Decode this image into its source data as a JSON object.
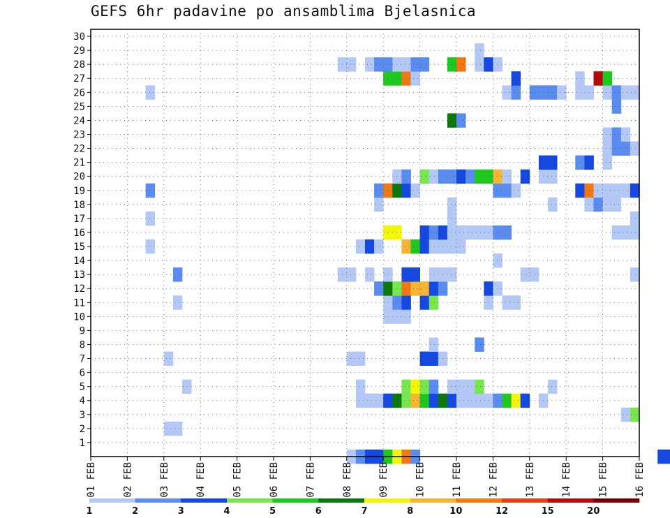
{
  "chart_data": {
    "type": "heatmap",
    "title": "GEFS 6hr padavine po ansamblima Bjelasnica",
    "x_ticks": [
      "01 FEB",
      "02 FEB",
      "03 FEB",
      "04 FEB",
      "05 FEB",
      "06 FEB",
      "07 FEB",
      "08 FEB",
      "09 FEB",
      "10 FEB",
      "11 FEB",
      "12 FEB",
      "13 FEB",
      "14 FEB",
      "15 FEB",
      "16 FEB"
    ],
    "y_ticks": [
      "1",
      "2",
      "3",
      "4",
      "5",
      "6",
      "7",
      "8",
      "9",
      "10",
      "11",
      "12",
      "13",
      "14",
      "15",
      "16",
      "17",
      "18",
      "19",
      "20",
      "21",
      "22",
      "23",
      "24",
      "25",
      "26",
      "27",
      "28",
      "29",
      "30"
    ],
    "y_range": [
      0,
      30
    ],
    "x_step_hours": 6,
    "grid": true,
    "legend": {
      "placement": "bottom",
      "labels": [
        "1",
        "2",
        "3",
        "4",
        "5",
        "6",
        "7",
        "8",
        "10",
        "12",
        "15",
        "20"
      ],
      "colors": [
        "#b4c8f5",
        "#5a8cf0",
        "#1448e0",
        "#78e650",
        "#1ec81e",
        "#0a780a",
        "#f5f50a",
        "#f5b432",
        "#f07814",
        "#e63c14",
        "#b40a0a",
        "#780000"
      ]
    },
    "cells_note": "member, 6h step (0 = 01 FEB 00Z), category (1..12 = legend bin)",
    "cells": [
      [
        0,
        28,
        1
      ],
      [
        0,
        29,
        2
      ],
      [
        0,
        30,
        3
      ],
      [
        0,
        31,
        3
      ],
      [
        0,
        32,
        5
      ],
      [
        0,
        33,
        7
      ],
      [
        0,
        34,
        9
      ],
      [
        0,
        35,
        2
      ],
      [
        0,
        62,
        3
      ],
      [
        0,
        63,
        3
      ],
      [
        2,
        8,
        1
      ],
      [
        2,
        9,
        1
      ],
      [
        3,
        58,
        1
      ],
      [
        3,
        59,
        4
      ],
      [
        4,
        29,
        1
      ],
      [
        4,
        30,
        1
      ],
      [
        4,
        31,
        1
      ],
      [
        4,
        32,
        3
      ],
      [
        4,
        33,
        6
      ],
      [
        4,
        34,
        4
      ],
      [
        4,
        35,
        8
      ],
      [
        4,
        36,
        5
      ],
      [
        4,
        37,
        3
      ],
      [
        4,
        38,
        6
      ],
      [
        4,
        39,
        3
      ],
      [
        4,
        40,
        1
      ],
      [
        4,
        41,
        1
      ],
      [
        4,
        42,
        1
      ],
      [
        4,
        43,
        1
      ],
      [
        4,
        44,
        2
      ],
      [
        4,
        45,
        5
      ],
      [
        4,
        46,
        7
      ],
      [
        4,
        47,
        3
      ],
      [
        4,
        49,
        1
      ],
      [
        5,
        10,
        1
      ],
      [
        5,
        29,
        1
      ],
      [
        5,
        34,
        4
      ],
      [
        5,
        35,
        7
      ],
      [
        5,
        36,
        4
      ],
      [
        5,
        37,
        2
      ],
      [
        5,
        39,
        1
      ],
      [
        5,
        40,
        1
      ],
      [
        5,
        41,
        1
      ],
      [
        5,
        42,
        4
      ],
      [
        5,
        50,
        1
      ],
      [
        7,
        8,
        1
      ],
      [
        7,
        28,
        1
      ],
      [
        7,
        29,
        1
      ],
      [
        7,
        36,
        3
      ],
      [
        7,
        37,
        3
      ],
      [
        7,
        38,
        1
      ],
      [
        8,
        37,
        1
      ],
      [
        8,
        42,
        2
      ],
      [
        10,
        32,
        1
      ],
      [
        10,
        33,
        1
      ],
      [
        10,
        34,
        1
      ],
      [
        11,
        9,
        1
      ],
      [
        11,
        32,
        1
      ],
      [
        11,
        33,
        2
      ],
      [
        11,
        34,
        3
      ],
      [
        11,
        36,
        3
      ],
      [
        11,
        37,
        4
      ],
      [
        11,
        43,
        1
      ],
      [
        11,
        45,
        1
      ],
      [
        11,
        46,
        1
      ],
      [
        12,
        31,
        2
      ],
      [
        12,
        32,
        6
      ],
      [
        12,
        33,
        4
      ],
      [
        12,
        34,
        9
      ],
      [
        12,
        35,
        8
      ],
      [
        12,
        36,
        8
      ],
      [
        12,
        37,
        3
      ],
      [
        12,
        38,
        2
      ],
      [
        12,
        43,
        3
      ],
      [
        12,
        44,
        1
      ],
      [
        13,
        9,
        2
      ],
      [
        13,
        27,
        1
      ],
      [
        13,
        28,
        1
      ],
      [
        13,
        30,
        1
      ],
      [
        13,
        32,
        1
      ],
      [
        13,
        34,
        3
      ],
      [
        13,
        35,
        3
      ],
      [
        13,
        37,
        1
      ],
      [
        13,
        38,
        1
      ],
      [
        13,
        39,
        1
      ],
      [
        13,
        47,
        1
      ],
      [
        13,
        48,
        1
      ],
      [
        13,
        59,
        1
      ],
      [
        14,
        44,
        1
      ],
      [
        15,
        6,
        1
      ],
      [
        15,
        29,
        1
      ],
      [
        15,
        30,
        3
      ],
      [
        15,
        31,
        1
      ],
      [
        15,
        34,
        8
      ],
      [
        15,
        35,
        5
      ],
      [
        15,
        36,
        3
      ],
      [
        15,
        37,
        1
      ],
      [
        15,
        38,
        1
      ],
      [
        15,
        39,
        1
      ],
      [
        15,
        40,
        1
      ],
      [
        16,
        32,
        7
      ],
      [
        16,
        33,
        7
      ],
      [
        16,
        36,
        3
      ],
      [
        16,
        37,
        2
      ],
      [
        16,
        38,
        3
      ],
      [
        16,
        39,
        1
      ],
      [
        16,
        40,
        1
      ],
      [
        16,
        41,
        1
      ],
      [
        16,
        42,
        1
      ],
      [
        16,
        43,
        1
      ],
      [
        16,
        44,
        2
      ],
      [
        16,
        45,
        2
      ],
      [
        16,
        57,
        1
      ],
      [
        16,
        58,
        1
      ],
      [
        16,
        59,
        1
      ],
      [
        17,
        6,
        1
      ],
      [
        17,
        39,
        1
      ],
      [
        17,
        59,
        1
      ],
      [
        18,
        31,
        1
      ],
      [
        18,
        39,
        1
      ],
      [
        18,
        50,
        1
      ],
      [
        18,
        54,
        1
      ],
      [
        18,
        55,
        2
      ],
      [
        18,
        56,
        1
      ],
      [
        18,
        57,
        1
      ],
      [
        19,
        6,
        2
      ],
      [
        19,
        31,
        2
      ],
      [
        19,
        32,
        9
      ],
      [
        19,
        33,
        6
      ],
      [
        19,
        34,
        3
      ],
      [
        19,
        35,
        1
      ],
      [
        19,
        44,
        2
      ],
      [
        19,
        45,
        2
      ],
      [
        19,
        46,
        1
      ],
      [
        19,
        53,
        3
      ],
      [
        19,
        54,
        9
      ],
      [
        19,
        55,
        1
      ],
      [
        19,
        56,
        1
      ],
      [
        19,
        57,
        1
      ],
      [
        19,
        58,
        1
      ],
      [
        19,
        59,
        3
      ],
      [
        20,
        33,
        1
      ],
      [
        20,
        34,
        2
      ],
      [
        20,
        36,
        4
      ],
      [
        20,
        37,
        1
      ],
      [
        20,
        38,
        2
      ],
      [
        20,
        39,
        2
      ],
      [
        20,
        40,
        3
      ],
      [
        20,
        41,
        2
      ],
      [
        20,
        42,
        5
      ],
      [
        20,
        43,
        5
      ],
      [
        20,
        44,
        8
      ],
      [
        20,
        45,
        1
      ],
      [
        20,
        47,
        3
      ],
      [
        20,
        49,
        1
      ],
      [
        20,
        50,
        1
      ],
      [
        21,
        49,
        3
      ],
      [
        21,
        50,
        3
      ],
      [
        21,
        53,
        2
      ],
      [
        21,
        54,
        3
      ],
      [
        21,
        56,
        1
      ],
      [
        22,
        56,
        1
      ],
      [
        22,
        57,
        2
      ],
      [
        22,
        58,
        2
      ],
      [
        22,
        59,
        1
      ],
      [
        23,
        56,
        1
      ],
      [
        23,
        57,
        2
      ],
      [
        23,
        58,
        1
      ],
      [
        24,
        39,
        6
      ],
      [
        24,
        40,
        2
      ],
      [
        25,
        57,
        2
      ],
      [
        26,
        6,
        1
      ],
      [
        26,
        45,
        1
      ],
      [
        26,
        46,
        2
      ],
      [
        26,
        48,
        2
      ],
      [
        26,
        49,
        2
      ],
      [
        26,
        50,
        2
      ],
      [
        26,
        51,
        1
      ],
      [
        26,
        53,
        1
      ],
      [
        26,
        54,
        1
      ],
      [
        26,
        56,
        1
      ],
      [
        26,
        57,
        2
      ],
      [
        26,
        58,
        1
      ],
      [
        26,
        59,
        1
      ],
      [
        27,
        32,
        5
      ],
      [
        27,
        33,
        5
      ],
      [
        27,
        34,
        9
      ],
      [
        27,
        35,
        1
      ],
      [
        27,
        46,
        3
      ],
      [
        27,
        53,
        1
      ],
      [
        27,
        55,
        11
      ],
      [
        27,
        56,
        5
      ],
      [
        28,
        27,
        1
      ],
      [
        28,
        28,
        1
      ],
      [
        28,
        30,
        1
      ],
      [
        28,
        31,
        2
      ],
      [
        28,
        32,
        2
      ],
      [
        28,
        33,
        1
      ],
      [
        28,
        34,
        1
      ],
      [
        28,
        35,
        2
      ],
      [
        28,
        36,
        2
      ],
      [
        28,
        39,
        5
      ],
      [
        28,
        40,
        9
      ],
      [
        28,
        42,
        1
      ],
      [
        28,
        43,
        3
      ],
      [
        28,
        44,
        1
      ],
      [
        29,
        42,
        1
      ]
    ]
  }
}
